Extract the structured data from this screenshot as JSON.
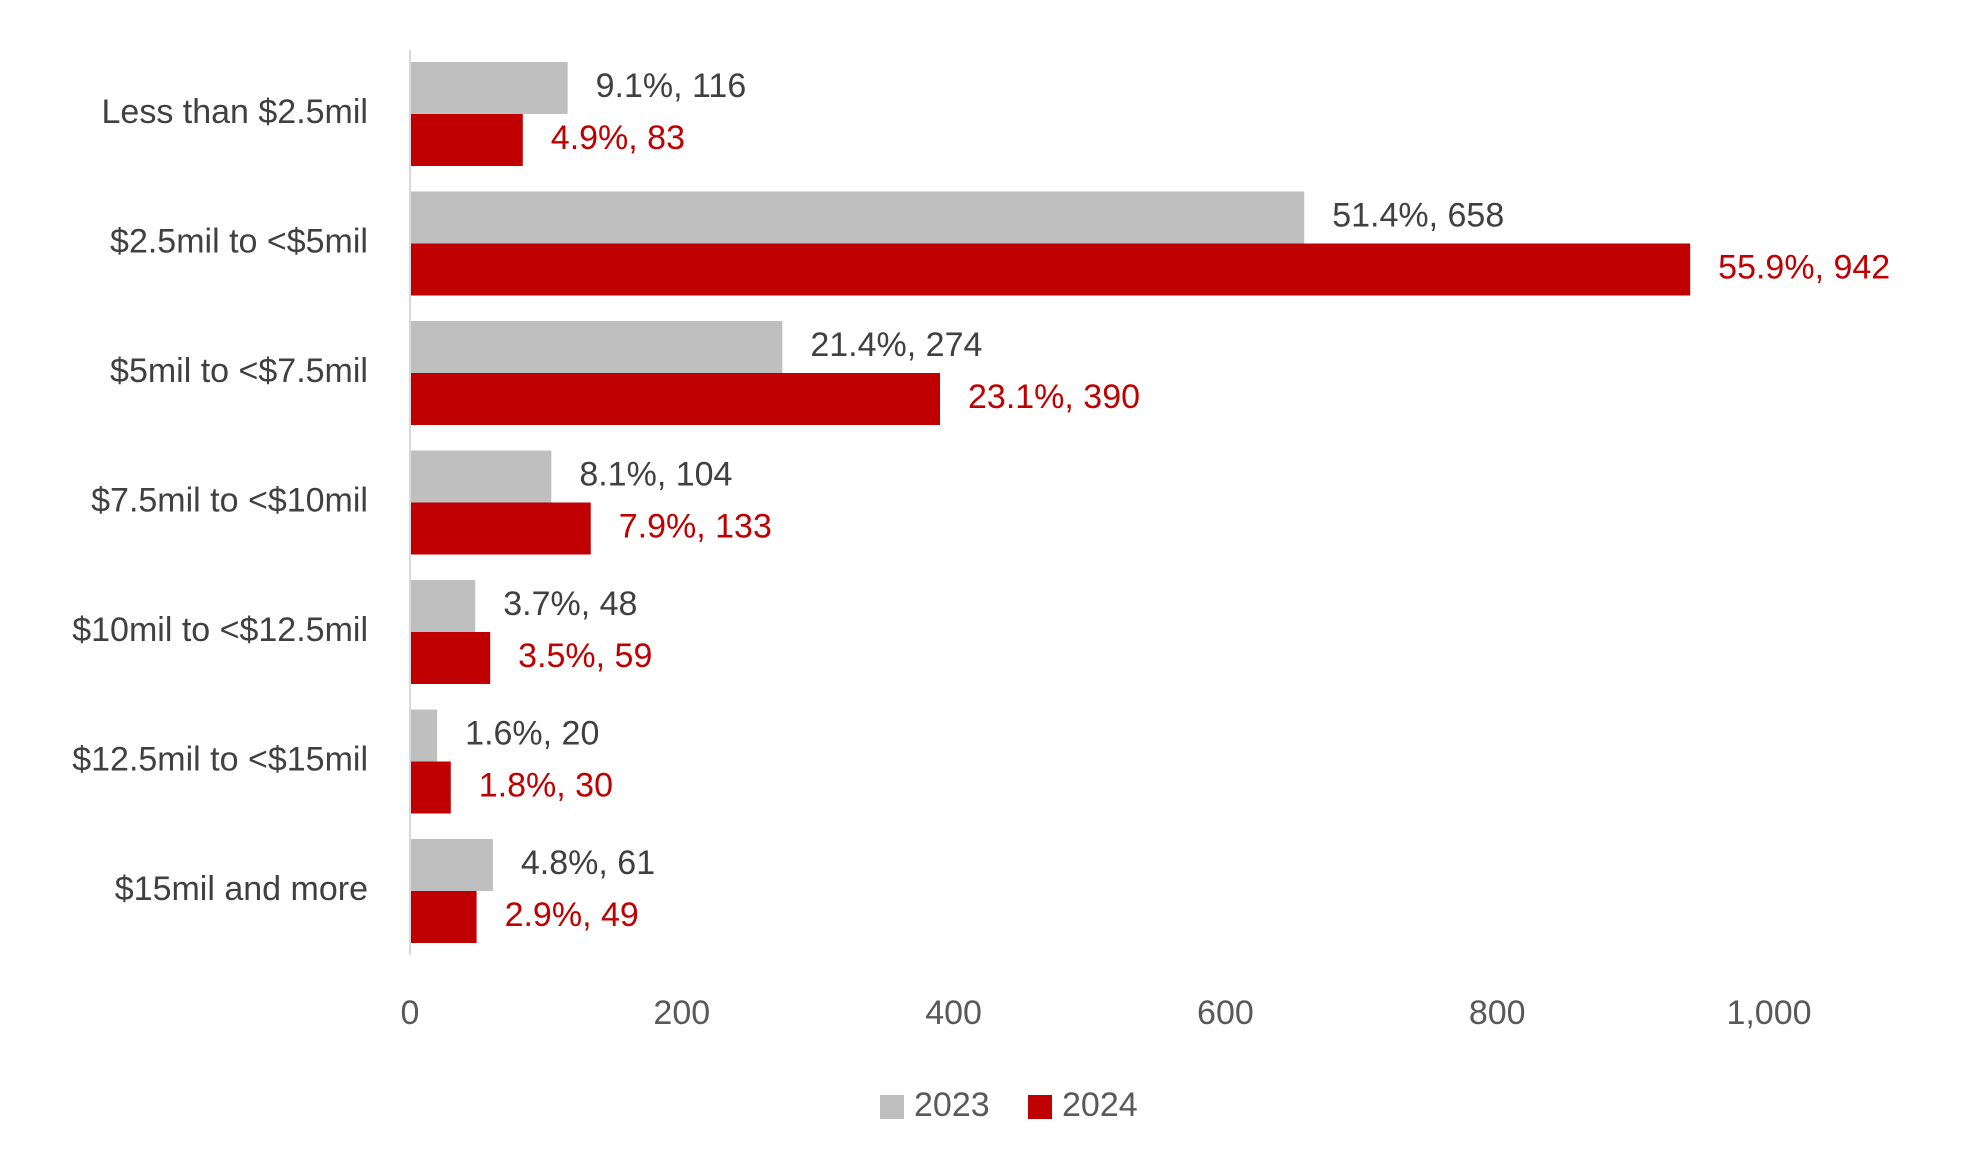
{
  "colors": {
    "series_2023": "#BFBFBF",
    "series_2024": "#C00000",
    "label_2023": "#404040",
    "label_2024": "#C00000",
    "axis_line": "#D9D9D9"
  },
  "chart_data": {
    "type": "bar",
    "orientation": "horizontal",
    "categories": [
      "Less than $2.5mil",
      "$2.5mil to <$5mil",
      "$5mil to <$7.5mil",
      "$7.5mil to <$10mil",
      "$10mil to <$12.5mil",
      "$12.5mil to <$15mil",
      "$15mil and more"
    ],
    "series": [
      {
        "name": "2023",
        "values": [
          116,
          658,
          274,
          104,
          48,
          20,
          61
        ],
        "labels": [
          "9.1%, 116",
          "51.4%, 658",
          "21.4%, 274",
          "8.1%, 104",
          "3.7%, 48",
          "1.6%, 20",
          "4.8%, 61"
        ]
      },
      {
        "name": "2024",
        "values": [
          83,
          942,
          390,
          133,
          59,
          30,
          49
        ],
        "labels": [
          "4.9%, 83",
          "55.9%, 942",
          "23.1%, 390",
          "7.9%, 133",
          "3.5%, 59",
          "1.8%, 30",
          "2.9%, 49"
        ]
      }
    ],
    "xlim": [
      0,
      1000
    ],
    "xticks": [
      0,
      200,
      400,
      600,
      800,
      1000
    ],
    "xtick_labels": [
      "0",
      "200",
      "400",
      "600",
      "800",
      "1,000"
    ],
    "grid": false,
    "legend_position": "bottom"
  }
}
